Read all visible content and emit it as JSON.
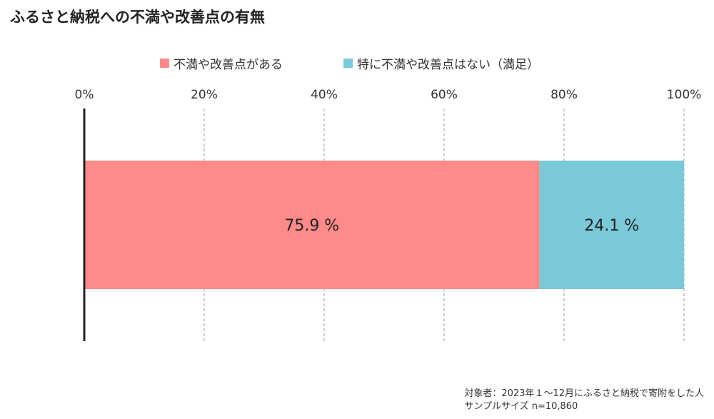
{
  "colors": {
    "dissatisfied": "#ff8a8a",
    "satisfied": "#7ac9d8",
    "grid": "#999999",
    "axis": "#222222"
  },
  "chart_data": {
    "type": "bar",
    "orientation": "horizontal",
    "stacked": true,
    "title": "ふるさと納税への不満や改善点の有無",
    "xlim": [
      0,
      100
    ],
    "ticks": [
      "0%",
      "20%",
      "40%",
      "60%",
      "80%",
      "100%"
    ],
    "tick_values": [
      0,
      20,
      40,
      60,
      80,
      100
    ],
    "grid": true,
    "legend_position": "top",
    "series": [
      {
        "name": "不満や改善点がある",
        "value": 75.9,
        "label": "75.9 %",
        "color": "#ff8a8a"
      },
      {
        "name": "特に不満や改善点はない（満足）",
        "value": 24.1,
        "label": "24.1 %",
        "color": "#7ac9d8"
      }
    ]
  },
  "footnote": {
    "line1": "対象者：2023年１～12月にふるさと納税で寄附をした人",
    "line2": "サンプルサイズ n=10,860"
  }
}
